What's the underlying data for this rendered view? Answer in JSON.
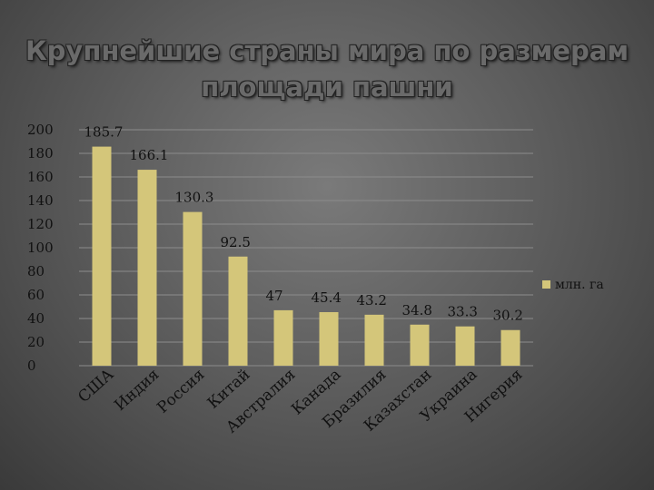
{
  "chart_data": {
    "type": "bar",
    "title_lines": [
      "Крупнейшие страны мира по размерам",
      "площади пашни"
    ],
    "categories": [
      "США",
      "Индия",
      "Россия",
      "Китай",
      "Австралия",
      "Канада",
      "Бразилия",
      "Казахстан",
      "Украина",
      "Нигерия"
    ],
    "series": [
      {
        "name": "млн. га",
        "values": [
          185.7,
          166.1,
          130.3,
          92.5,
          47,
          45.4,
          43.2,
          34.8,
          33.3,
          30.2
        ]
      }
    ],
    "data_labels": [
      "185.7",
      "166.1",
      "130.3",
      "92.5",
      "47",
      "45.4",
      "43.2",
      "34.8",
      "33.3",
      "30.2"
    ],
    "yticks": [
      "0",
      "20",
      "40",
      "60",
      "80",
      "100",
      "120",
      "140",
      "160",
      "180",
      "200"
    ],
    "ylim": [
      0,
      200
    ],
    "grid": true,
    "legend_position": "right",
    "bar_color": "#d4c67a"
  }
}
